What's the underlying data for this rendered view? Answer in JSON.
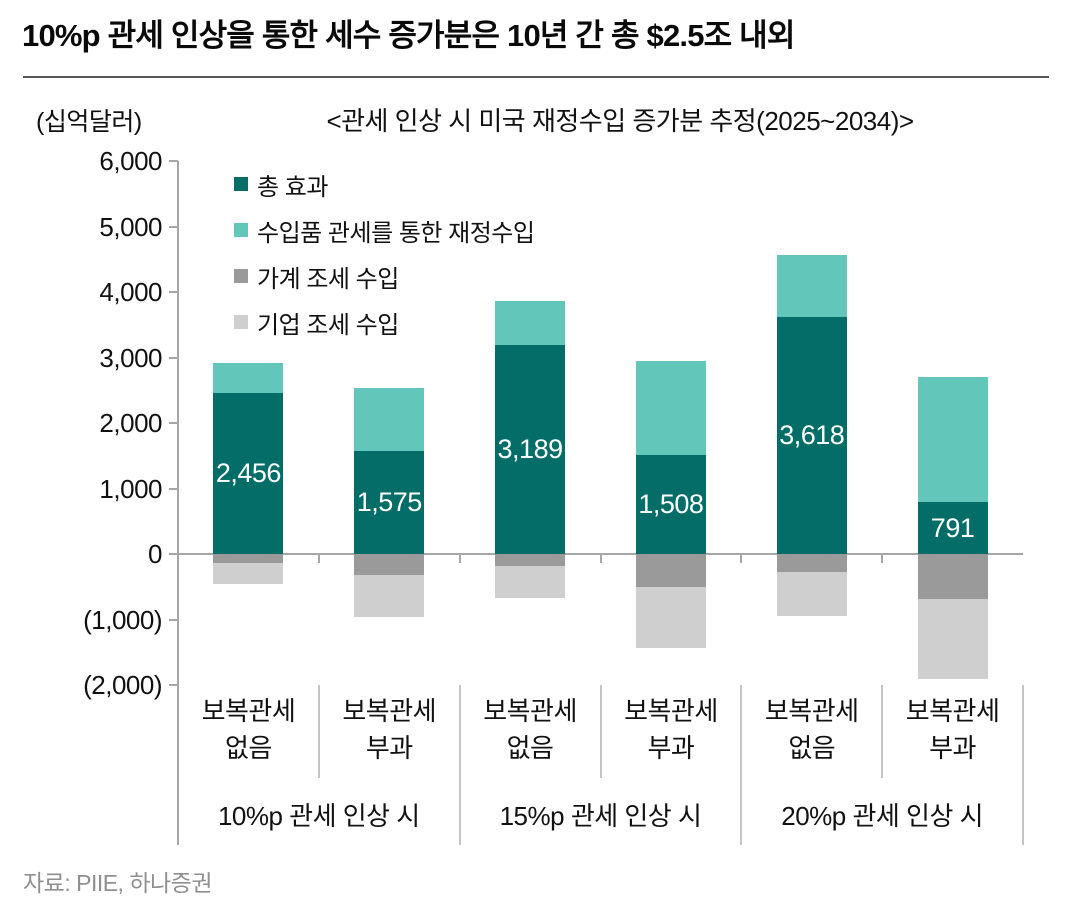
{
  "page": {
    "title": "10%p 관세 인상을 통한 세수 증가분은 10년 간 총 $2.5조 내외",
    "source": "자료: PIIE, 하나증권"
  },
  "chart_data": {
    "type": "bar",
    "stacked": true,
    "title": "<관세 인상 시 미국 재정수입 증가분 추정(2025~2034)>",
    "unit_label": "(십억달러)",
    "ylim": [
      -2000,
      6000
    ],
    "ytick_step": 1000,
    "ytick_labels": [
      "6,000",
      "5,000",
      "4,000",
      "3,000",
      "2,000",
      "1,000",
      "0",
      "(1,000)",
      "(2,000)"
    ],
    "grid": false,
    "legend_position": "top-left-inside",
    "categories": [
      {
        "line1": "보복관세",
        "line2": "없음"
      },
      {
        "line1": "보복관세",
        "line2": "부과"
      },
      {
        "line1": "보복관세",
        "line2": "없음"
      },
      {
        "line1": "보복관세",
        "line2": "부과"
      },
      {
        "line1": "보복관세",
        "line2": "없음"
      },
      {
        "line1": "보복관세",
        "line2": "부과"
      }
    ],
    "group_labels": [
      "10%p 관세 인상 시",
      "15%p 관세 인상 시",
      "20%p 관세 인상 시"
    ],
    "series": [
      {
        "name": "총 효과",
        "color": "#046d67",
        "values": [
          2456,
          1575,
          3189,
          1508,
          3618,
          791
        ],
        "value_labels": [
          "2,456",
          "1,575",
          "3,189",
          "1,508",
          "3,618",
          "791"
        ]
      },
      {
        "name": "수입품 관세를 통한 재정수입",
        "color": "#63c6ba",
        "values": [
          2921,
          2530,
          3864,
          2943,
          4558,
          2701
        ]
      },
      {
        "name": "가계 조세 수입",
        "color": "#9a9a9a",
        "values": [
          -135,
          -325,
          -190,
          -500,
          -270,
          -680
        ]
      },
      {
        "name": "기업 조세 수입",
        "color": "#cfcfcf",
        "values": [
          -330,
          -630,
          -485,
          -935,
          -670,
          -1230
        ]
      }
    ],
    "colors": {
      "axis": "#a6a6a6",
      "separator": "#c4c4c4",
      "bar_label_text": "#ffffff"
    }
  }
}
